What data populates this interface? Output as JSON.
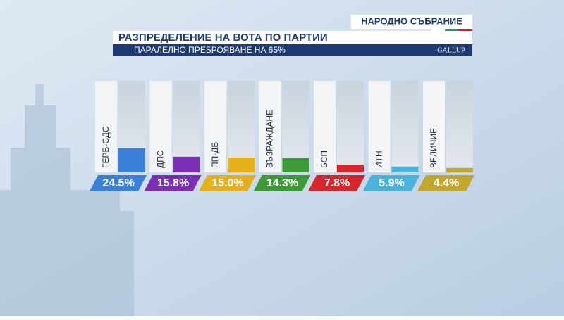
{
  "header": {
    "institution": "НАРОДНО СЪБРАНИЕ",
    "logo": "GALLUP"
  },
  "chart_data": {
    "type": "bar",
    "title": "РАЗПРЕДЕЛЕНИЕ НА ВОТА ПО ПАРТИИ",
    "subtitle": "ПАРАЛЕЛНО ПРЕБРОЯВАНЕ НА 65%",
    "categories": [
      "ГЕРБ-СДС",
      "ДПС",
      "ПП-ДБ",
      "ВЪЗРАЖДАНЕ",
      "БСП",
      "ИТН",
      "ВЕЛИЧИЕ"
    ],
    "values": [
      24.5,
      15.8,
      15.0,
      14.3,
      7.8,
      5.9,
      4.4
    ],
    "value_labels": [
      "24.5%",
      "15.8%",
      "15.0%",
      "14.3%",
      "7.8%",
      "5.9%",
      "4.4%"
    ],
    "colors": [
      "#3a7fd8",
      "#7a2fb4",
      "#e6b01c",
      "#3d9a36",
      "#d6262b",
      "#4ab3dc",
      "#c2a72c"
    ]
  }
}
